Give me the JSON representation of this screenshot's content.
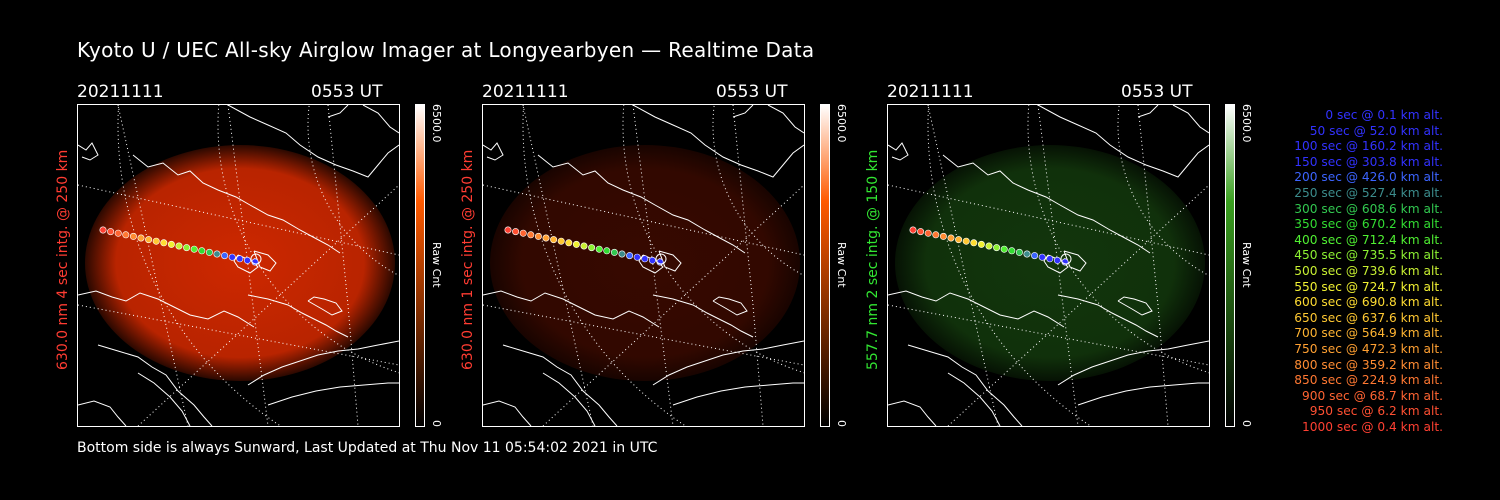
{
  "title": "Kyoto U / UEC All-sky Airglow Imager at Longyearbyen — Realtime Data",
  "panels": [
    {
      "date": "20211111",
      "time": "0553 UT",
      "label": "630.0 nm 4 sec intg. @ 250 km",
      "label_color": "#ff3c32",
      "glow": "#d82a00",
      "glow_strength": 0.95,
      "cbar_top": "#ffffff",
      "cbar_mid": "#ff5a00",
      "cbar_bottom": "#000000",
      "cbar_max": "6500.0",
      "cbar_min": "0",
      "cbar_unit": "Raw Cnt"
    },
    {
      "date": "20211111",
      "time": "0553 UT",
      "label": "630.0 nm 1 sec intg. @ 250 km",
      "label_color": "#ff3c32",
      "glow": "#7a1400",
      "glow_strength": 0.45,
      "cbar_top": "#ffffff",
      "cbar_mid": "#ff5a00",
      "cbar_bottom": "#000000",
      "cbar_max": "6500.0",
      "cbar_min": "0",
      "cbar_unit": "Raw Cnt"
    },
    {
      "date": "20211111",
      "time": "0553 UT",
      "label": "557.7 nm 2 sec intg. @ 150 km",
      "label_color": "#32e632",
      "glow": "#1e5a14",
      "glow_strength": 0.6,
      "cbar_top": "#ffffff",
      "cbar_mid": "#3aa020",
      "cbar_bottom": "#000000",
      "cbar_max": "6500.0",
      "cbar_min": "0",
      "cbar_unit": "Raw Cnt"
    }
  ],
  "trajectory": [
    {
      "time": "0 sec",
      "alt": "0.1 km alt.",
      "color": "#3232ff"
    },
    {
      "time": "50 sec",
      "alt": "52.0 km alt.",
      "color": "#3232ff"
    },
    {
      "time": "100 sec",
      "alt": "160.2 km alt.",
      "color": "#3232ff"
    },
    {
      "time": "150 sec",
      "alt": "303.8 km alt.",
      "color": "#3232ff"
    },
    {
      "time": "200 sec",
      "alt": "426.0 km alt.",
      "color": "#3c64ff"
    },
    {
      "time": "250 sec",
      "alt": "527.4 km alt.",
      "color": "#3c8c8c"
    },
    {
      "time": "300 sec",
      "alt": "608.6 km alt.",
      "color": "#32c850"
    },
    {
      "time": "350 sec",
      "alt": "670.2 km alt.",
      "color": "#32dc32"
    },
    {
      "time": "400 sec",
      "alt": "712.4 km alt.",
      "color": "#50f032"
    },
    {
      "time": "450 sec",
      "alt": "735.5 km alt.",
      "color": "#8cf032"
    },
    {
      "time": "500 sec",
      "alt": "739.6 km alt.",
      "color": "#c8f032"
    },
    {
      "time": "550 sec",
      "alt": "724.7 km alt.",
      "color": "#f0f032"
    },
    {
      "time": "600 sec",
      "alt": "690.8 km alt.",
      "color": "#ffdc32"
    },
    {
      "time": "650 sec",
      "alt": "637.6 km alt.",
      "color": "#ffc832"
    },
    {
      "time": "700 sec",
      "alt": "564.9 km alt.",
      "color": "#ffb432"
    },
    {
      "time": "750 sec",
      "alt": "472.3 km alt.",
      "color": "#ffa032"
    },
    {
      "time": "800 sec",
      "alt": "359.2 km alt.",
      "color": "#ff8c32"
    },
    {
      "time": "850 sec",
      "alt": "224.9 km alt.",
      "color": "#ff7832"
    },
    {
      "time": "900 sec",
      "alt": "68.7 km alt.",
      "color": "#ff6432"
    },
    {
      "time": "950 sec",
      "alt": "6.2 km alt.",
      "color": "#ff5032"
    },
    {
      "time": "1000 sec",
      "alt": "0.4 km alt.",
      "color": "#ff4032"
    }
  ],
  "footer": "Bottom side is always Sunward, Last Updated at Thu Nov 11 05:54:02 2021 in UTC"
}
